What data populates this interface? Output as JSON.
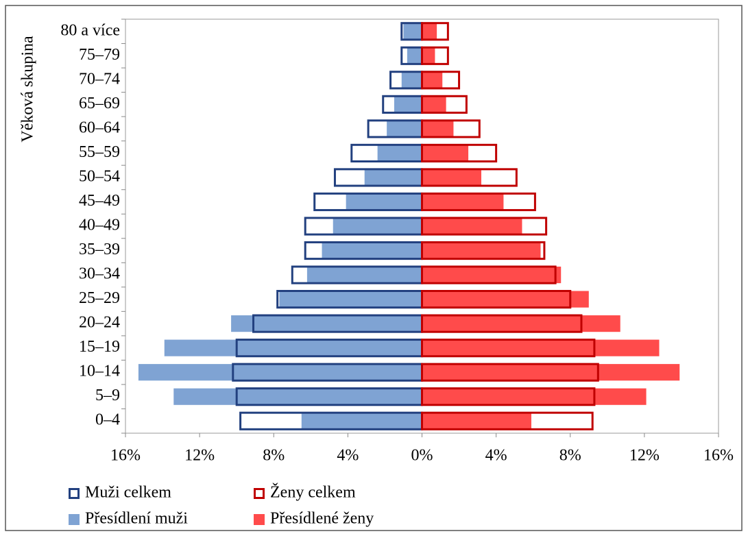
{
  "chart_data": {
    "type": "pyramid",
    "y_label": "Věková skupina",
    "categories": [
      "0–4",
      "5–9",
      "10–14",
      "15–19",
      "20–24",
      "25–29",
      "30–34",
      "35–39",
      "40–49",
      "45–49",
      "50–54",
      "55–59",
      "60–64",
      "65–69",
      "70–74",
      "75–79",
      "80 a více"
    ],
    "series": [
      {
        "name": "Muži celkem",
        "style": "outline",
        "color": "#22407f",
        "values": [
          -9.8,
          -10.0,
          -10.2,
          -10.0,
          -9.1,
          -7.8,
          -7.0,
          -6.3,
          -6.3,
          -5.8,
          -4.7,
          -3.8,
          -2.9,
          -2.1,
          -1.7,
          -1.1,
          -1.1
        ]
      },
      {
        "name": "Ženy celkem",
        "style": "outline",
        "color": "#c00000",
        "values": [
          9.2,
          9.3,
          9.5,
          9.3,
          8.6,
          8.0,
          7.2,
          6.6,
          6.7,
          6.1,
          5.1,
          4.0,
          3.1,
          2.4,
          2.0,
          1.4,
          1.4
        ]
      },
      {
        "name": "Přesídlení muži",
        "style": "fill",
        "color": "#7fa3d3",
        "values": [
          -6.5,
          -13.4,
          -15.3,
          -13.9,
          -10.3,
          -7.7,
          -6.2,
          -5.4,
          -4.8,
          -4.1,
          -3.1,
          -2.4,
          -1.9,
          -1.5,
          -1.1,
          -0.8,
          -1.0
        ]
      },
      {
        "name": "Přesídlené ženy",
        "style": "fill",
        "color": "#ff4b4b",
        "values": [
          5.9,
          12.1,
          13.9,
          12.8,
          10.7,
          9.0,
          7.5,
          6.4,
          5.4,
          4.4,
          3.2,
          2.5,
          1.7,
          1.3,
          1.1,
          0.7,
          0.8
        ]
      }
    ],
    "xlim": [
      -16,
      16
    ],
    "xticks": [
      {
        "value": -16,
        "label": "16%"
      },
      {
        "value": -12,
        "label": "12%"
      },
      {
        "value": -8,
        "label": "8%"
      },
      {
        "value": -4,
        "label": "4%"
      },
      {
        "value": 0,
        "label": "0%"
      },
      {
        "value": 4,
        "label": "4%"
      },
      {
        "value": 8,
        "label": "8%"
      },
      {
        "value": 12,
        "label": "12%"
      },
      {
        "value": 16,
        "label": "16%"
      }
    ]
  }
}
